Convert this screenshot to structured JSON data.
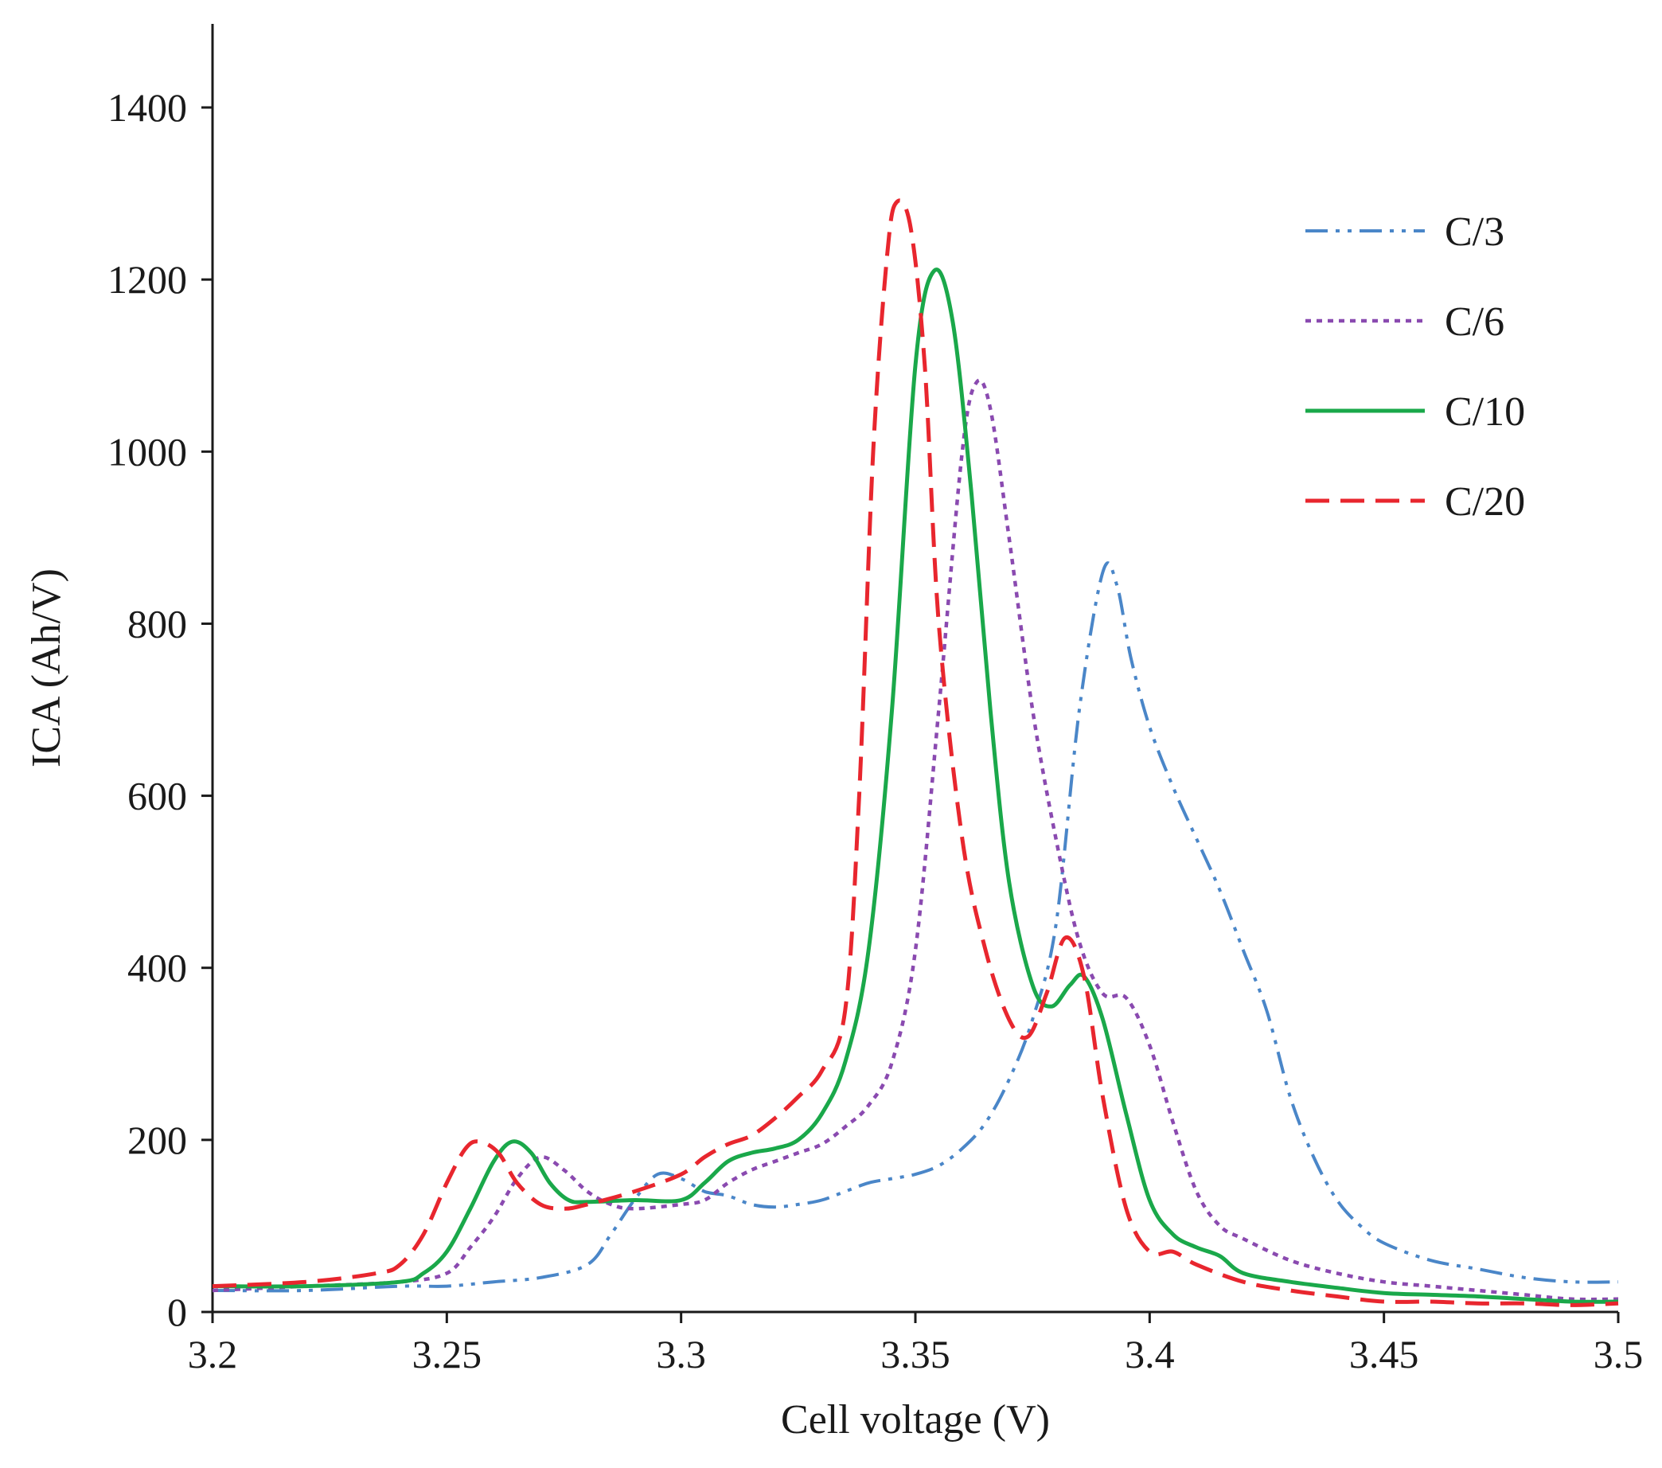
{
  "chart_data": {
    "type": "line",
    "title": "",
    "xlabel": "Cell voltage (V)",
    "ylabel": "ICA (Ah/V)",
    "xlim": [
      3.2,
      3.5
    ],
    "ylim": [
      0,
      1500
    ],
    "x_ticks": [
      3.2,
      3.25,
      3.3,
      3.35,
      3.4,
      3.45,
      3.5
    ],
    "x_tick_labels": [
      "3.2",
      "3.25",
      "3.3",
      "3.35",
      "3.4",
      "3.45",
      "3.5"
    ],
    "y_ticks": [
      0,
      200,
      400,
      600,
      800,
      1000,
      1200,
      1400
    ],
    "y_tick_labels": [
      "0",
      "200",
      "400",
      "600",
      "800",
      "1000",
      "1200",
      "1400"
    ],
    "grid": false,
    "legend_position": "top-right",
    "series": [
      {
        "name": "C/3",
        "color": "#4a86c8",
        "style": "dash-dot-dot",
        "points": [
          [
            3.2,
            25
          ],
          [
            3.22,
            25
          ],
          [
            3.24,
            30
          ],
          [
            3.25,
            30
          ],
          [
            3.26,
            35
          ],
          [
            3.27,
            40
          ],
          [
            3.28,
            55
          ],
          [
            3.285,
            90
          ],
          [
            3.29,
            130
          ],
          [
            3.295,
            160
          ],
          [
            3.3,
            155
          ],
          [
            3.305,
            140
          ],
          [
            3.31,
            135
          ],
          [
            3.315,
            125
          ],
          [
            3.32,
            122
          ],
          [
            3.325,
            125
          ],
          [
            3.33,
            130
          ],
          [
            3.335,
            140
          ],
          [
            3.34,
            150
          ],
          [
            3.345,
            155
          ],
          [
            3.35,
            160
          ],
          [
            3.355,
            170
          ],
          [
            3.36,
            190
          ],
          [
            3.365,
            220
          ],
          [
            3.37,
            270
          ],
          [
            3.375,
            340
          ],
          [
            3.38,
            450
          ],
          [
            3.385,
            700
          ],
          [
            3.39,
            860
          ],
          [
            3.393,
            845
          ],
          [
            3.396,
            760
          ],
          [
            3.4,
            680
          ],
          [
            3.405,
            610
          ],
          [
            3.41,
            550
          ],
          [
            3.415,
            490
          ],
          [
            3.42,
            420
          ],
          [
            3.425,
            350
          ],
          [
            3.43,
            250
          ],
          [
            3.435,
            180
          ],
          [
            3.44,
            130
          ],
          [
            3.445,
            100
          ],
          [
            3.45,
            80
          ],
          [
            3.46,
            60
          ],
          [
            3.47,
            50
          ],
          [
            3.48,
            40
          ],
          [
            3.49,
            35
          ],
          [
            3.5,
            35
          ]
        ]
      },
      {
        "name": "C/6",
        "color": "#8a4ab0",
        "style": "dotted",
        "points": [
          [
            3.2,
            25
          ],
          [
            3.22,
            30
          ],
          [
            3.24,
            35
          ],
          [
            3.25,
            45
          ],
          [
            3.255,
            75
          ],
          [
            3.26,
            110
          ],
          [
            3.265,
            155
          ],
          [
            3.27,
            180
          ],
          [
            3.275,
            165
          ],
          [
            3.28,
            140
          ],
          [
            3.285,
            125
          ],
          [
            3.29,
            120
          ],
          [
            3.3,
            125
          ],
          [
            3.305,
            130
          ],
          [
            3.31,
            150
          ],
          [
            3.315,
            165
          ],
          [
            3.32,
            175
          ],
          [
            3.325,
            185
          ],
          [
            3.33,
            195
          ],
          [
            3.335,
            215
          ],
          [
            3.34,
            240
          ],
          [
            3.345,
            290
          ],
          [
            3.35,
            420
          ],
          [
            3.355,
            700
          ],
          [
            3.36,
            1000
          ],
          [
            3.363,
            1080
          ],
          [
            3.366,
            1050
          ],
          [
            3.37,
            900
          ],
          [
            3.375,
            700
          ],
          [
            3.38,
            550
          ],
          [
            3.385,
            430
          ],
          [
            3.39,
            370
          ],
          [
            3.395,
            365
          ],
          [
            3.4,
            310
          ],
          [
            3.405,
            220
          ],
          [
            3.41,
            140
          ],
          [
            3.415,
            100
          ],
          [
            3.42,
            85
          ],
          [
            3.43,
            60
          ],
          [
            3.44,
            45
          ],
          [
            3.45,
            35
          ],
          [
            3.46,
            30
          ],
          [
            3.47,
            25
          ],
          [
            3.48,
            20
          ],
          [
            3.49,
            15
          ],
          [
            3.5,
            15
          ]
        ]
      },
      {
        "name": "C/10",
        "color": "#1aa84a",
        "style": "solid",
        "points": [
          [
            3.2,
            30
          ],
          [
            3.22,
            30
          ],
          [
            3.24,
            35
          ],
          [
            3.245,
            45
          ],
          [
            3.25,
            70
          ],
          [
            3.255,
            120
          ],
          [
            3.26,
            175
          ],
          [
            3.264,
            198
          ],
          [
            3.268,
            185
          ],
          [
            3.272,
            150
          ],
          [
            3.276,
            130
          ],
          [
            3.28,
            128
          ],
          [
            3.29,
            130
          ],
          [
            3.3,
            130
          ],
          [
            3.305,
            150
          ],
          [
            3.31,
            175
          ],
          [
            3.315,
            185
          ],
          [
            3.32,
            190
          ],
          [
            3.325,
            200
          ],
          [
            3.33,
            230
          ],
          [
            3.335,
            290
          ],
          [
            3.34,
            420
          ],
          [
            3.345,
            700
          ],
          [
            3.35,
            1100
          ],
          [
            3.354,
            1210
          ],
          [
            3.358,
            1150
          ],
          [
            3.362,
            950
          ],
          [
            3.366,
            700
          ],
          [
            3.37,
            500
          ],
          [
            3.375,
            380
          ],
          [
            3.379,
            355
          ],
          [
            3.383,
            380
          ],
          [
            3.386,
            390
          ],
          [
            3.39,
            340
          ],
          [
            3.395,
            230
          ],
          [
            3.4,
            130
          ],
          [
            3.405,
            90
          ],
          [
            3.41,
            75
          ],
          [
            3.415,
            65
          ],
          [
            3.42,
            45
          ],
          [
            3.43,
            35
          ],
          [
            3.44,
            28
          ],
          [
            3.45,
            22
          ],
          [
            3.46,
            20
          ],
          [
            3.47,
            18
          ],
          [
            3.48,
            15
          ],
          [
            3.49,
            12
          ],
          [
            3.5,
            12
          ]
        ]
      },
      {
        "name": "C/20",
        "color": "#e8262e",
        "style": "dashed",
        "points": [
          [
            3.2,
            30
          ],
          [
            3.22,
            35
          ],
          [
            3.235,
            45
          ],
          [
            3.24,
            55
          ],
          [
            3.245,
            90
          ],
          [
            3.25,
            150
          ],
          [
            3.254,
            190
          ],
          [
            3.257,
            198
          ],
          [
            3.261,
            185
          ],
          [
            3.265,
            150
          ],
          [
            3.27,
            125
          ],
          [
            3.275,
            120
          ],
          [
            3.28,
            125
          ],
          [
            3.29,
            140
          ],
          [
            3.3,
            160
          ],
          [
            3.305,
            180
          ],
          [
            3.31,
            195
          ],
          [
            3.315,
            205
          ],
          [
            3.32,
            225
          ],
          [
            3.325,
            250
          ],
          [
            3.33,
            280
          ],
          [
            3.335,
            350
          ],
          [
            3.338,
            600
          ],
          [
            3.341,
            1000
          ],
          [
            3.344,
            1230
          ],
          [
            3.346,
            1290
          ],
          [
            3.349,
            1260
          ],
          [
            3.352,
            1100
          ],
          [
            3.355,
            800
          ],
          [
            3.36,
            550
          ],
          [
            3.365,
            420
          ],
          [
            3.37,
            340
          ],
          [
            3.374,
            320
          ],
          [
            3.378,
            370
          ],
          [
            3.382,
            435
          ],
          [
            3.386,
            390
          ],
          [
            3.39,
            250
          ],
          [
            3.395,
            120
          ],
          [
            3.4,
            70
          ],
          [
            3.405,
            70
          ],
          [
            3.41,
            55
          ],
          [
            3.42,
            35
          ],
          [
            3.43,
            25
          ],
          [
            3.44,
            18
          ],
          [
            3.45,
            12
          ],
          [
            3.46,
            12
          ],
          [
            3.47,
            10
          ],
          [
            3.48,
            10
          ],
          [
            3.49,
            8
          ],
          [
            3.5,
            10
          ]
        ]
      }
    ]
  }
}
